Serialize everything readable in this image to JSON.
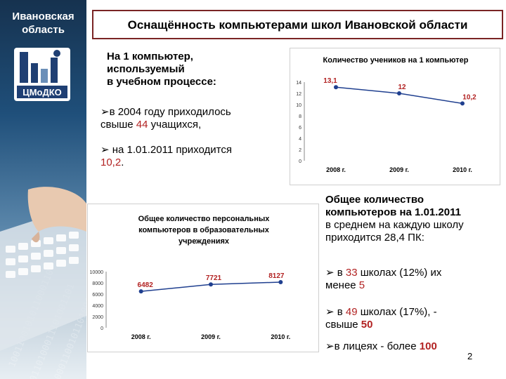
{
  "sidebar": {
    "title_line1": "Ивановская",
    "title_line2": "область",
    "logo_text": "ЦМоДКО",
    "logo_bar_color": "#1f3f73"
  },
  "header": {
    "title": "Оснащённость компьютерами школ Ивановской области"
  },
  "block1": {
    "heading_line1": "На 1 компьютер,",
    "heading_line2": "используемый",
    "heading_line3": "в учебном процессе:",
    "item1_prefix": "в 2004 году приходилось",
    "item1_line2_a": "свыше ",
    "item1_value": "44",
    "item1_line2_b": " учащихся,",
    "item2_prefix": " на 1.01.2011 приходится",
    "item2_value": "10,2",
    "item2_suffix": "."
  },
  "block2": {
    "heading_line1": "Общее количество",
    "heading_line2": "компьютеров на 1.01.2011",
    "heading_line3": "в среднем на каждую школу",
    "heading_line4": "приходится 28,4 ПК:",
    "item1_a": " в ",
    "item1_value": "33",
    "item1_b": " школах (12%) их",
    "item1_line2": "менее ",
    "item1_value2": "5",
    "item2_a": " в ",
    "item2_value": "49",
    "item2_b": " школах (17%), -",
    "item2_line2": "свыше ",
    "item2_value2": "50",
    "item3_a": "в лицеях - более ",
    "item3_value": "100"
  },
  "page_number": "2",
  "colors": {
    "title_border": "#7a2424",
    "highlight": "#b22222",
    "line": "#1f3f8f"
  },
  "chart_data": [
    {
      "type": "line",
      "title": "Количество учеников на 1 компьютер",
      "categories": [
        "2008 г.",
        "2009 г.",
        "2010 г."
      ],
      "values": [
        13.1,
        12,
        10.2
      ],
      "labels": [
        "13,1",
        "12",
        "10,2"
      ],
      "ylim": [
        0,
        14
      ],
      "yticks": [
        "14",
        "12",
        "10",
        "8",
        "6",
        "4",
        "2",
        "0"
      ],
      "ytick_values": [
        14,
        12,
        10,
        8,
        6,
        4,
        2,
        0
      ],
      "grid": false
    },
    {
      "type": "line",
      "title_line1": "Общее количество персональных",
      "title_line2": "компьютеров  в образовательных",
      "title_line3": "учреждениях",
      "categories": [
        "2008 г.",
        "2009 г.",
        "2010 г."
      ],
      "values": [
        6482,
        7721,
        8127
      ],
      "labels": [
        "6482",
        "7721",
        "8127"
      ],
      "ylim": [
        0,
        10000
      ],
      "yticks": [
        "10000",
        "8000",
        "6000",
        "4000",
        "2000",
        "0"
      ],
      "ytick_values": [
        10000,
        8000,
        6000,
        4000,
        2000,
        0
      ],
      "grid": false
    }
  ]
}
